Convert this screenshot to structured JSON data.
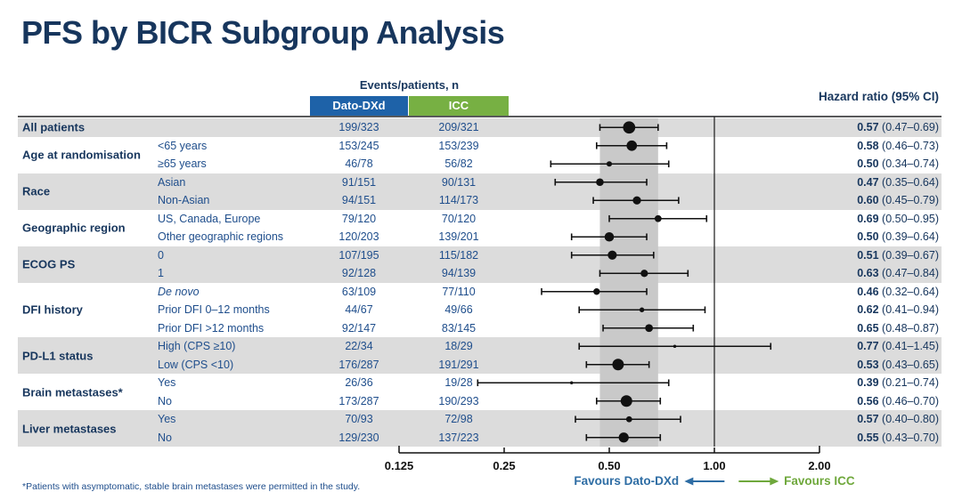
{
  "title": "PFS by BICR Subgroup Analysis",
  "header": {
    "events": "Events/patients, n",
    "arm1": "Dato-DXd",
    "arm2": "ICC",
    "hr": "Hazard ratio (95% CI)"
  },
  "favours": {
    "left": "Favours Dato-DXd",
    "right": "Favours ICC"
  },
  "footnote": "*Patients with asymptomatic, stable brain metastases were permitted in the study.",
  "colors": {
    "navy": "#17365D",
    "value_blue": "#1F4E8C",
    "dato_blue": "#1E62A8",
    "icc_green": "#77B043",
    "row_gray": "#DCDCDC",
    "band_gray": "#C9C9C9",
    "favours_blue": "#2E6DA4",
    "favours_green": "#6FA83C"
  },
  "chart_data": {
    "type": "scatter",
    "variant": "forest-plot",
    "title": "PFS by BICR Subgroup Analysis",
    "x_scale": "log2",
    "x_tick_labels": [
      "0.125",
      "0.25",
      "0.50",
      "1.00",
      "2.00"
    ],
    "x_tick_values": [
      0.125,
      0.25,
      0.5,
      1.0,
      2.0
    ],
    "x_range": [
      0.125,
      2.0
    ],
    "reference_line": 1.0,
    "shaded_band": [
      0.47,
      0.69
    ],
    "legend": "marker size proportional to subgroup patient count",
    "groups": [
      {
        "label": "All patients",
        "shaded": true,
        "rows": [
          {
            "subgroup": "",
            "dato": "199/323",
            "icc": "209/321",
            "hr": 0.57,
            "lo": 0.47,
            "hi": 0.69,
            "hr_label": "0.57",
            "ci_label": "(0.47–0.69)",
            "italic": false
          }
        ]
      },
      {
        "label": "Age at randomisation",
        "shaded": false,
        "rows": [
          {
            "subgroup": "<65 years",
            "dato": "153/245",
            "icc": "153/239",
            "hr": 0.58,
            "lo": 0.46,
            "hi": 0.73,
            "hr_label": "0.58",
            "ci_label": "(0.46–0.73)",
            "italic": false
          },
          {
            "subgroup": "≥65 years",
            "dato": "46/78",
            "icc": "56/82",
            "hr": 0.5,
            "lo": 0.34,
            "hi": 0.74,
            "hr_label": "0.50",
            "ci_label": "(0.34–0.74)",
            "italic": false
          }
        ]
      },
      {
        "label": "Race",
        "shaded": true,
        "rows": [
          {
            "subgroup": "Asian",
            "dato": "91/151",
            "icc": "90/131",
            "hr": 0.47,
            "lo": 0.35,
            "hi": 0.64,
            "hr_label": "0.47",
            "ci_label": "(0.35–0.64)",
            "italic": false
          },
          {
            "subgroup": "Non-Asian",
            "dato": "94/151",
            "icc": "114/173",
            "hr": 0.6,
            "lo": 0.45,
            "hi": 0.79,
            "hr_label": "0.60",
            "ci_label": "(0.45–0.79)",
            "italic": false
          }
        ]
      },
      {
        "label": "Geographic region",
        "shaded": false,
        "rows": [
          {
            "subgroup": "US, Canada, Europe",
            "dato": "79/120",
            "icc": "70/120",
            "hr": 0.69,
            "lo": 0.5,
            "hi": 0.95,
            "hr_label": "0.69",
            "ci_label": "(0.50–0.95)",
            "italic": false
          },
          {
            "subgroup": "Other geographic regions",
            "dato": "120/203",
            "icc": "139/201",
            "hr": 0.5,
            "lo": 0.39,
            "hi": 0.64,
            "hr_label": "0.50",
            "ci_label": "(0.39–0.64)",
            "italic": false
          }
        ]
      },
      {
        "label": "ECOG PS",
        "shaded": true,
        "rows": [
          {
            "subgroup": "0",
            "dato": "107/195",
            "icc": "115/182",
            "hr": 0.51,
            "lo": 0.39,
            "hi": 0.67,
            "hr_label": "0.51",
            "ci_label": "(0.39–0.67)",
            "italic": false
          },
          {
            "subgroup": "1",
            "dato": "92/128",
            "icc": "94/139",
            "hr": 0.63,
            "lo": 0.47,
            "hi": 0.84,
            "hr_label": "0.63",
            "ci_label": "(0.47–0.84)",
            "italic": false
          }
        ]
      },
      {
        "label": "DFI history",
        "shaded": false,
        "rows": [
          {
            "subgroup": "De novo",
            "dato": "63/109",
            "icc": "77/110",
            "hr": 0.46,
            "lo": 0.32,
            "hi": 0.64,
            "hr_label": "0.46",
            "ci_label": "(0.32–0.64)",
            "italic": true
          },
          {
            "subgroup": "Prior DFI 0–12 months",
            "dato": "44/67",
            "icc": "49/66",
            "hr": 0.62,
            "lo": 0.41,
            "hi": 0.94,
            "hr_label": "0.62",
            "ci_label": "(0.41–0.94)",
            "italic": false
          },
          {
            "subgroup": "Prior DFI >12 months",
            "dato": "92/147",
            "icc": "83/145",
            "hr": 0.65,
            "lo": 0.48,
            "hi": 0.87,
            "hr_label": "0.65",
            "ci_label": "(0.48–0.87)",
            "italic": false
          }
        ]
      },
      {
        "label": "PD-L1 status",
        "shaded": true,
        "rows": [
          {
            "subgroup": "High (CPS ≥10)",
            "dato": "22/34",
            "icc": "18/29",
            "hr": 0.77,
            "lo": 0.41,
            "hi": 1.45,
            "hr_label": "0.77",
            "ci_label": "(0.41–1.45)",
            "italic": false
          },
          {
            "subgroup": "Low (CPS <10)",
            "dato": "176/287",
            "icc": "191/291",
            "hr": 0.53,
            "lo": 0.43,
            "hi": 0.65,
            "hr_label": "0.53",
            "ci_label": "(0.43–0.65)",
            "italic": false
          }
        ]
      },
      {
        "label": "Brain metastases*",
        "shaded": false,
        "rows": [
          {
            "subgroup": "Yes",
            "dato": "26/36",
            "icc": "19/28",
            "hr": 0.39,
            "lo": 0.21,
            "hi": 0.74,
            "hr_label": "0.39",
            "ci_label": "(0.21–0.74)",
            "italic": false
          },
          {
            "subgroup": "No",
            "dato": "173/287",
            "icc": "190/293",
            "hr": 0.56,
            "lo": 0.46,
            "hi": 0.7,
            "hr_label": "0.56",
            "ci_label": "(0.46–0.70)",
            "italic": false
          }
        ]
      },
      {
        "label": "Liver metastases",
        "shaded": true,
        "rows": [
          {
            "subgroup": "Yes",
            "dato": "70/93",
            "icc": "72/98",
            "hr": 0.57,
            "lo": 0.4,
            "hi": 0.8,
            "hr_label": "0.57",
            "ci_label": "(0.40–0.80)",
            "italic": false
          },
          {
            "subgroup": "No",
            "dato": "129/230",
            "icc": "137/223",
            "hr": 0.55,
            "lo": 0.43,
            "hi": 0.7,
            "hr_label": "0.55",
            "ci_label": "(0.43–0.70)",
            "italic": false
          }
        ]
      }
    ]
  }
}
